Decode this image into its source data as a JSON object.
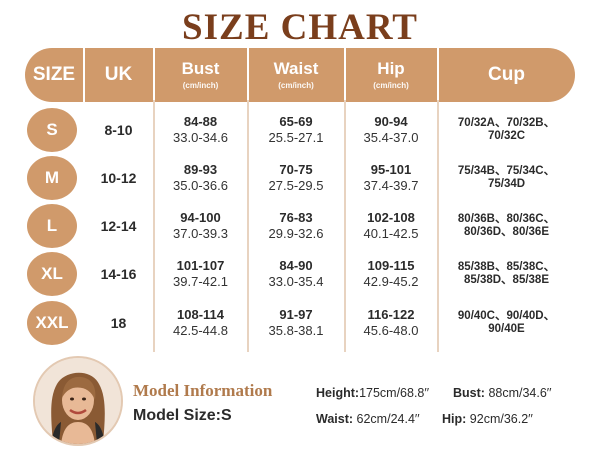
{
  "title": "SIZE CHART",
  "header": {
    "size": "SIZE",
    "uk": "UK",
    "bust": "Bust",
    "bust_unit": "(cm/inch)",
    "waist": "Waist",
    "waist_unit": "(cm/inch)",
    "hip": "Hip",
    "hip_unit": "(cm/inch)",
    "cup": "Cup"
  },
  "rows": [
    {
      "size": "S",
      "uk": "8-10",
      "bust_cm": "84-88",
      "bust_in": "33.0-34.6",
      "waist_cm": "65-69",
      "waist_in": "25.5-27.1",
      "hip_cm": "90-94",
      "hip_in": "35.4-37.0",
      "cup_1": "70/32A、70/32B、",
      "cup_2": "70/32C"
    },
    {
      "size": "M",
      "uk": "10-12",
      "bust_cm": "89-93",
      "bust_in": "35.0-36.6",
      "waist_cm": "70-75",
      "waist_in": "27.5-29.5",
      "hip_cm": "95-101",
      "hip_in": "37.4-39.7",
      "cup_1": "75/34B、75/34C、",
      "cup_2": "75/34D"
    },
    {
      "size": "L",
      "uk": "12-14",
      "bust_cm": "94-100",
      "bust_in": "37.0-39.3",
      "waist_cm": "76-83",
      "waist_in": "29.9-32.6",
      "hip_cm": "102-108",
      "hip_in": "40.1-42.5",
      "cup_1": "80/36B、80/36C、",
      "cup_2": "80/36D、80/36E"
    },
    {
      "size": "XL",
      "uk": "14-16",
      "bust_cm": "101-107",
      "bust_in": "39.7-42.1",
      "waist_cm": "84-90",
      "waist_in": "33.0-35.4",
      "hip_cm": "109-115",
      "hip_in": "42.9-45.2",
      "cup_1": "85/38B、85/38C、",
      "cup_2": "85/38D、85/38E"
    },
    {
      "size": "XXL",
      "uk": "18",
      "bust_cm": "108-114",
      "bust_in": "42.5-44.8",
      "waist_cm": "91-97",
      "waist_in": "35.8-38.1",
      "hip_cm": "116-122",
      "hip_in": "45.6-48.0",
      "cup_1": "90/40C、90/40D、",
      "cup_2": "90/40E"
    }
  ],
  "model": {
    "title": "Model Information",
    "size": "Model Size:S",
    "height_label": "Height:",
    "height_value": "175cm/68.8′′",
    "bust_label": "Bust:",
    "bust_value": "88cm/34.6′′",
    "waist_label": "Waist:",
    "waist_value": "62cm/24.4′′",
    "hip_label": "Hip:",
    "hip_value": "92cm/36.2′′"
  },
  "colors": {
    "accent": "#d09a6b",
    "title": "#7a3e1c",
    "model_title": "#b07a4c"
  }
}
